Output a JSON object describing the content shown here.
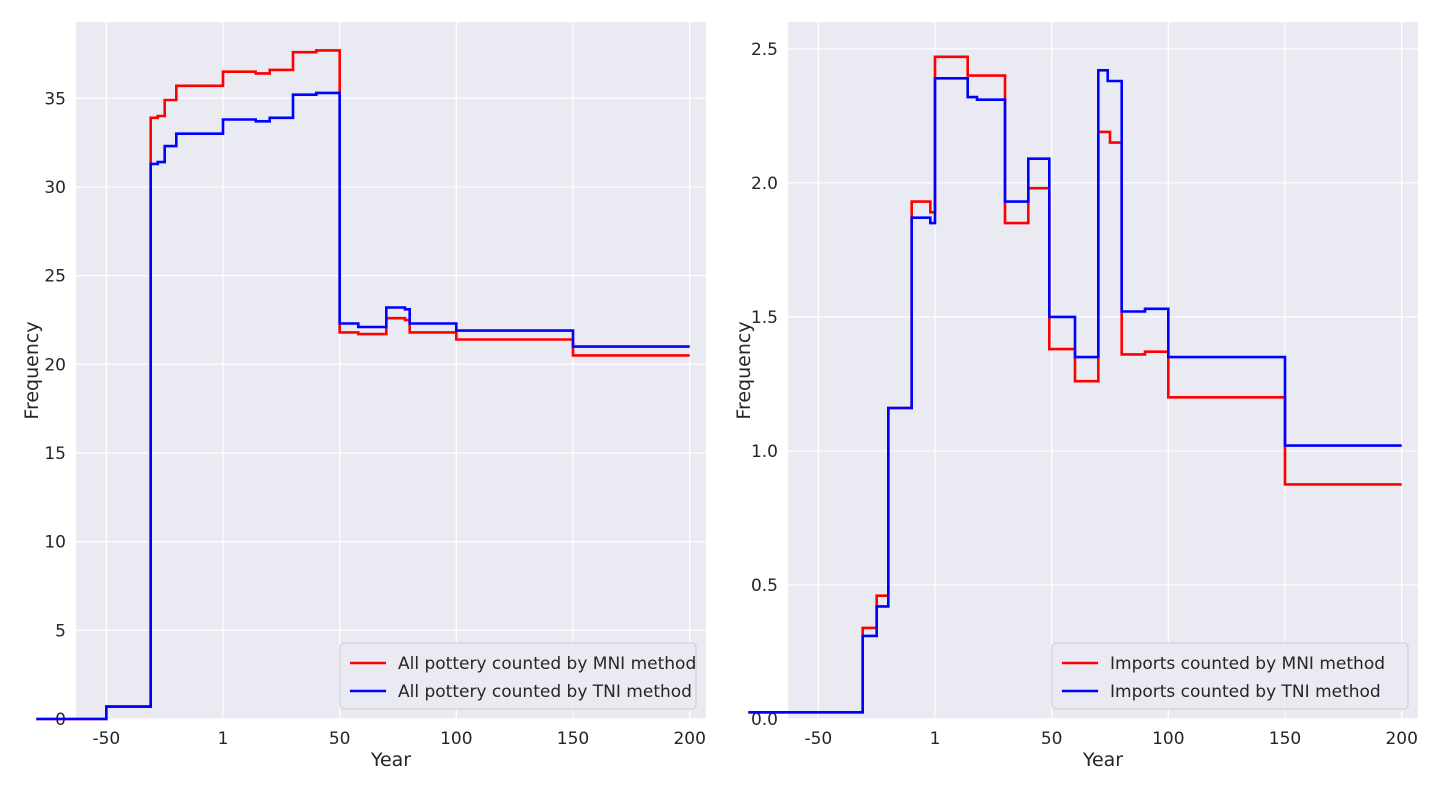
{
  "chart_data": [
    {
      "type": "line",
      "title": "",
      "xlabel": "Year",
      "ylabel": "Frequency",
      "xlim": [
        -63,
        207
      ],
      "ylim": [
        0,
        39.3
      ],
      "xticks": [
        {
          "value": -50,
          "label": "-50"
        },
        {
          "value": 0,
          "label": "1"
        },
        {
          "value": 50,
          "label": "50"
        },
        {
          "value": 100,
          "label": "100"
        },
        {
          "value": 150,
          "label": "150"
        },
        {
          "value": 200,
          "label": "200"
        }
      ],
      "yticks": [
        {
          "value": 0,
          "label": "0"
        },
        {
          "value": 5,
          "label": "5"
        },
        {
          "value": 10,
          "label": "10"
        },
        {
          "value": 15,
          "label": "15"
        },
        {
          "value": 20,
          "label": "20"
        },
        {
          "value": 25,
          "label": "25"
        },
        {
          "value": 30,
          "label": "30"
        },
        {
          "value": 35,
          "label": "35"
        }
      ],
      "grid": true,
      "legend_position": "lower-right",
      "series": [
        {
          "name": "All pottery counted by MNI method",
          "color": "#ff0000",
          "step": true,
          "points": [
            [
              -80,
              0
            ],
            [
              -50,
              0
            ],
            [
              -50,
              0.7
            ],
            [
              -31,
              0.7
            ],
            [
              -31,
              33.9
            ],
            [
              -28,
              33.9
            ],
            [
              -28,
              34.0
            ],
            [
              -25,
              34.0
            ],
            [
              -25,
              34.9
            ],
            [
              -20,
              34.9
            ],
            [
              -20,
              35.7
            ],
            [
              -10,
              35.7
            ],
            [
              -10,
              35.7
            ],
            [
              0,
              35.7
            ],
            [
              0,
              36.5
            ],
            [
              14,
              36.5
            ],
            [
              14,
              36.4
            ],
            [
              20,
              36.4
            ],
            [
              20,
              36.6
            ],
            [
              30,
              36.6
            ],
            [
              30,
              37.6
            ],
            [
              40,
              37.6
            ],
            [
              40,
              37.7
            ],
            [
              50,
              37.7
            ],
            [
              50,
              21.8
            ],
            [
              58,
              21.8
            ],
            [
              58,
              21.7
            ],
            [
              70,
              21.7
            ],
            [
              70,
              22.6
            ],
            [
              78,
              22.6
            ],
            [
              78,
              22.5
            ],
            [
              80,
              22.5
            ],
            [
              80,
              21.8
            ],
            [
              100,
              21.8
            ],
            [
              100,
              21.4
            ],
            [
              150,
              21.4
            ],
            [
              150,
              20.5
            ],
            [
              200,
              20.5
            ]
          ]
        },
        {
          "name": "All pottery counted by TNI method",
          "color": "#0000ff",
          "step": true,
          "points": [
            [
              -80,
              0
            ],
            [
              -50,
              0
            ],
            [
              -50,
              0.7
            ],
            [
              -31,
              0.7
            ],
            [
              -31,
              31.3
            ],
            [
              -28,
              31.3
            ],
            [
              -28,
              31.4
            ],
            [
              -25,
              31.4
            ],
            [
              -25,
              32.3
            ],
            [
              -20,
              32.3
            ],
            [
              -20,
              33.0
            ],
            [
              -10,
              33.0
            ],
            [
              0,
              33.0
            ],
            [
              0,
              33.8
            ],
            [
              14,
              33.8
            ],
            [
              14,
              33.7
            ],
            [
              20,
              33.7
            ],
            [
              20,
              33.9
            ],
            [
              30,
              33.9
            ],
            [
              30,
              35.2
            ],
            [
              40,
              35.2
            ],
            [
              40,
              35.3
            ],
            [
              50,
              35.3
            ],
            [
              50,
              22.3
            ],
            [
              58,
              22.3
            ],
            [
              58,
              22.1
            ],
            [
              70,
              22.1
            ],
            [
              70,
              23.2
            ],
            [
              78,
              23.2
            ],
            [
              78,
              23.1
            ],
            [
              80,
              23.1
            ],
            [
              80,
              22.3
            ],
            [
              100,
              22.3
            ],
            [
              100,
              21.9
            ],
            [
              150,
              21.9
            ],
            [
              150,
              21.0
            ],
            [
              200,
              21.0
            ]
          ]
        }
      ]
    },
    {
      "type": "line",
      "title": "",
      "xlabel": "Year",
      "ylabel": "Frequency",
      "xlim": [
        -63,
        207
      ],
      "ylim": [
        0,
        2.6
      ],
      "xticks": [
        {
          "value": -50,
          "label": "-50"
        },
        {
          "value": 0,
          "label": "1"
        },
        {
          "value": 50,
          "label": "50"
        },
        {
          "value": 100,
          "label": "100"
        },
        {
          "value": 150,
          "label": "150"
        },
        {
          "value": 200,
          "label": "200"
        }
      ],
      "yticks": [
        {
          "value": 0,
          "label": "0.0"
        },
        {
          "value": 0.5,
          "label": "0.5"
        },
        {
          "value": 1.0,
          "label": "1.0"
        },
        {
          "value": 1.5,
          "label": "1.5"
        },
        {
          "value": 2.0,
          "label": "2.0"
        },
        {
          "value": 2.5,
          "label": "2.5"
        }
      ],
      "grid": true,
      "legend_position": "lower-right",
      "series": [
        {
          "name": "Imports counted by MNI method",
          "color": "#ff0000",
          "step": true,
          "points": [
            [
              -80,
              0.025
            ],
            [
              -31,
              0.025
            ],
            [
              -31,
              0.34
            ],
            [
              -25,
              0.34
            ],
            [
              -25,
              0.46
            ],
            [
              -20,
              0.46
            ],
            [
              -20,
              1.16
            ],
            [
              -10,
              1.16
            ],
            [
              -10,
              1.93
            ],
            [
              -2,
              1.93
            ],
            [
              -2,
              1.89
            ],
            [
              0,
              1.89
            ],
            [
              0,
              2.47
            ],
            [
              14,
              2.47
            ],
            [
              14,
              2.4
            ],
            [
              20,
              2.4
            ],
            [
              20,
              2.4
            ],
            [
              30,
              2.4
            ],
            [
              30,
              1.85
            ],
            [
              40,
              1.85
            ],
            [
              40,
              1.98
            ],
            [
              49,
              1.98
            ],
            [
              49,
              1.38
            ],
            [
              60,
              1.38
            ],
            [
              60,
              1.26
            ],
            [
              70,
              1.26
            ],
            [
              70,
              2.19
            ],
            [
              75,
              2.19
            ],
            [
              75,
              2.15
            ],
            [
              80,
              2.15
            ],
            [
              80,
              1.36
            ],
            [
              90,
              1.36
            ],
            [
              90,
              1.37
            ],
            [
              100,
              1.37
            ],
            [
              100,
              1.2
            ],
            [
              150,
              1.2
            ],
            [
              150,
              0.875
            ],
            [
              200,
              0.875
            ]
          ]
        },
        {
          "name": "Imports counted by TNI method",
          "color": "#0000ff",
          "step": true,
          "points": [
            [
              -80,
              0.025
            ],
            [
              -31,
              0.025
            ],
            [
              -31,
              0.31
            ],
            [
              -25,
              0.31
            ],
            [
              -25,
              0.42
            ],
            [
              -20,
              0.42
            ],
            [
              -20,
              1.16
            ],
            [
              -10,
              1.16
            ],
            [
              -10,
              1.87
            ],
            [
              -2,
              1.87
            ],
            [
              -2,
              1.85
            ],
            [
              0,
              1.85
            ],
            [
              0,
              2.39
            ],
            [
              14,
              2.39
            ],
            [
              14,
              2.32
            ],
            [
              18,
              2.32
            ],
            [
              18,
              2.31
            ],
            [
              30,
              2.31
            ],
            [
              30,
              1.93
            ],
            [
              40,
              1.93
            ],
            [
              40,
              2.09
            ],
            [
              49,
              2.09
            ],
            [
              49,
              1.5
            ],
            [
              60,
              1.5
            ],
            [
              60,
              1.35
            ],
            [
              70,
              1.35
            ],
            [
              70,
              2.42
            ],
            [
              74,
              2.42
            ],
            [
              74,
              2.38
            ],
            [
              80,
              2.38
            ],
            [
              80,
              1.52
            ],
            [
              90,
              1.52
            ],
            [
              90,
              1.53
            ],
            [
              100,
              1.53
            ],
            [
              100,
              1.35
            ],
            [
              150,
              1.35
            ],
            [
              150,
              1.02
            ],
            [
              200,
              1.02
            ]
          ]
        }
      ]
    }
  ]
}
